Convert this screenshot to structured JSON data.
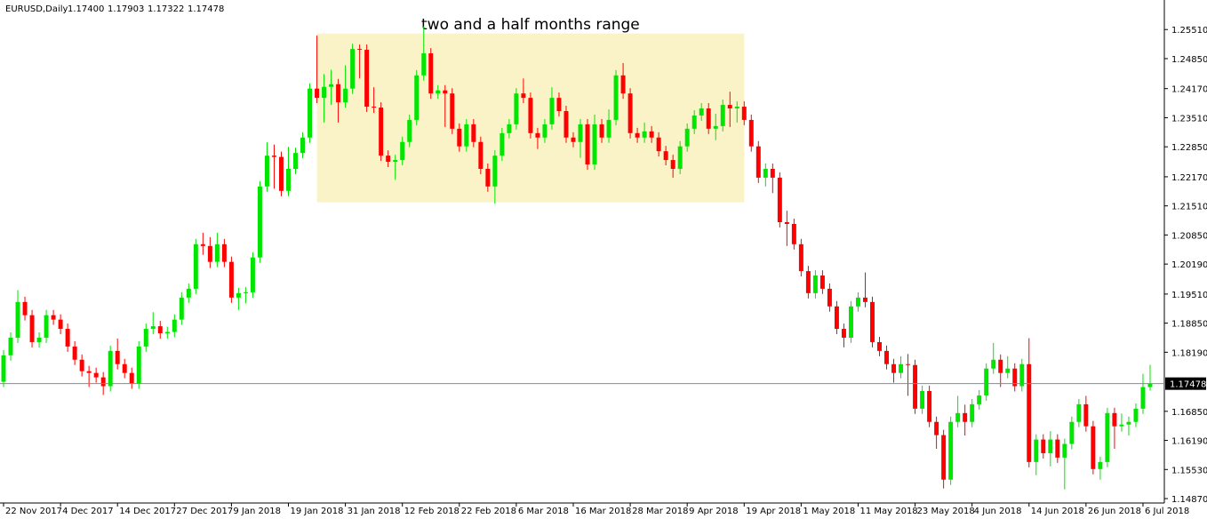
{
  "chart_data": {
    "type": "candlestick",
    "symbol": "EURUSD,Daily",
    "ohlc_labels": [
      "1.17400",
      "1.17903",
      "1.17322",
      "1.17478"
    ],
    "annotation": {
      "label": "two and a half months range",
      "x": [
        44,
        104
      ],
      "y": [
        1.2159,
        1.2542
      ],
      "color": "#fbf3c8"
    },
    "up_color": "#00e600",
    "down_color": "#ff0000",
    "last_price": {
      "value": 1.17478,
      "label": "1.17478"
    },
    "ylim": [
      1.1477,
      1.2618
    ],
    "xlim": [
      -0.5,
      163
    ],
    "yticks": [
      {
        "value": 1.2551,
        "label": "1.25510"
      },
      {
        "value": 1.2485,
        "label": "1.24850"
      },
      {
        "value": 1.2417,
        "label": "1.24170"
      },
      {
        "value": 1.2351,
        "label": "1.23510"
      },
      {
        "value": 1.2285,
        "label": "1.22850"
      },
      {
        "value": 1.2217,
        "label": "1.22170"
      },
      {
        "value": 1.2151,
        "label": "1.21510"
      },
      {
        "value": 1.2085,
        "label": "1.20850"
      },
      {
        "value": 1.2019,
        "label": "1.20190"
      },
      {
        "value": 1.1951,
        "label": "1.19510"
      },
      {
        "value": 1.1885,
        "label": "1.18850"
      },
      {
        "value": 1.1819,
        "label": "1.18190"
      },
      {
        "value": 1.1685,
        "label": "1.16850"
      },
      {
        "value": 1.1619,
        "label": "1.16190"
      },
      {
        "value": 1.1553,
        "label": "1.15530"
      },
      {
        "value": 1.1487,
        "label": "1.14870"
      }
    ],
    "xticks": [
      {
        "value": 0,
        "label": "22 Nov 2017"
      },
      {
        "value": 8,
        "label": "4 Dec 2017"
      },
      {
        "value": 16,
        "label": "14 Dec 2017"
      },
      {
        "value": 24,
        "label": "27 Dec 2017"
      },
      {
        "value": 32,
        "label": "9 Jan 2018"
      },
      {
        "value": 40,
        "label": "19 Jan 2018"
      },
      {
        "value": 48,
        "label": "31 Jan 2018"
      },
      {
        "value": 56,
        "label": "12 Feb 2018"
      },
      {
        "value": 64,
        "label": "22 Feb 2018"
      },
      {
        "value": 72,
        "label": "6 Mar 2018"
      },
      {
        "value": 80,
        "label": "16 Mar 2018"
      },
      {
        "value": 88,
        "label": "28 Mar 2018"
      },
      {
        "value": 96,
        "label": "9 Apr 2018"
      },
      {
        "value": 104,
        "label": "19 Apr 2018"
      },
      {
        "value": 112,
        "label": "1 May 2018"
      },
      {
        "value": 120,
        "label": "11 May 2018"
      },
      {
        "value": 128,
        "label": "23 May 2018"
      },
      {
        "value": 136,
        "label": "4 Jun 2018"
      },
      {
        "value": 144,
        "label": "14 Jun 2018"
      },
      {
        "value": 152,
        "label": "26 Jun 2018"
      },
      {
        "value": 160,
        "label": "6 Jul 2018"
      }
    ],
    "open": [
      1.1752,
      1.1812,
      1.1852,
      1.1933,
      1.1903,
      1.1842,
      1.1852,
      1.1903,
      1.1893,
      1.1872,
      1.1832,
      1.1802,
      1.1776,
      1.1772,
      1.1762,
      1.1742,
      1.1822,
      1.1792,
      1.1772,
      1.1748,
      1.1832,
      1.1872,
      1.1878,
      1.1862,
      1.1865,
      1.1893,
      1.1943,
      1.1963,
      1.2064,
      1.206,
      1.2024,
      1.2064,
      1.2024,
      1.1943,
      1.1953,
      1.1955,
      1.2034,
      1.2195,
      1.2265,
      1.2262,
      1.2185,
      1.2235,
      1.2271,
      1.2306,
      1.2417,
      1.2396,
      1.2421,
      1.2427,
      1.2386,
      1.2417,
      1.2507,
      1.2505,
      1.2376,
      1.2374,
      1.2265,
      1.2251,
      1.2255,
      1.2296,
      1.2346,
      1.2447,
      1.2497,
      1.2406,
      1.2413,
      1.2406,
      1.2326,
      1.2286,
      1.2336,
      1.2296,
      1.2235,
      1.2195,
      1.2265,
      1.2316,
      1.2336,
      1.2406,
      1.2396,
      1.2316,
      1.2306,
      1.2336,
      1.2396,
      1.2366,
      1.2306,
      1.2296,
      1.2336,
      1.2245,
      1.2336,
      1.2306,
      1.2346,
      1.2447,
      1.2406,
      1.2316,
      1.2306,
      1.232,
      1.2306,
      1.2275,
      1.2255,
      1.2235,
      1.2286,
      1.2326,
      1.2356,
      1.2372,
      1.2326,
      1.2332,
      1.238,
      1.2372,
      1.2376,
      1.2346,
      1.2286,
      1.2215,
      1.2235,
      1.2215,
      1.2114,
      1.211,
      1.2064,
      1.2003,
      1.1953,
      1.1993,
      1.1963,
      1.1923,
      1.1872,
      1.1852,
      1.1923,
      1.1943,
      1.1933,
      1.1842,
      1.1822,
      1.1792,
      1.1772,
      1.1792,
      1.179,
      1.1691,
      1.1731,
      1.1661,
      1.1631,
      1.153,
      1.1661,
      1.1681,
      1.1661,
      1.1701,
      1.1721,
      1.1782,
      1.1802,
      1.1772,
      1.1782,
      1.1742,
      1.1792,
      1.157,
      1.1621,
      1.159,
      1.1621,
      1.158,
      1.1611,
      1.1661,
      1.1701,
      1.1651,
      1.1554,
      1.157,
      1.1681,
      1.1651,
      1.1655,
      1.1661,
      1.1691,
      1.174
    ],
    "high": [
      1.1824,
      1.1864,
      1.196,
      1.1945,
      1.1915,
      1.1864,
      1.1915,
      1.1915,
      1.1905,
      1.1884,
      1.1844,
      1.1814,
      1.1788,
      1.1784,
      1.1774,
      1.1834,
      1.185,
      1.1804,
      1.1784,
      1.1844,
      1.1884,
      1.191,
      1.189,
      1.1877,
      1.1905,
      1.1955,
      1.1975,
      1.2076,
      1.209,
      1.208,
      1.209,
      1.2076,
      1.2036,
      1.1965,
      1.1967,
      1.2046,
      1.2207,
      1.2295,
      1.229,
      1.2274,
      1.2285,
      1.2283,
      1.2318,
      1.2429,
      1.2537,
      1.245,
      1.246,
      1.2439,
      1.247,
      1.2519,
      1.2517,
      1.2517,
      1.242,
      1.2386,
      1.2277,
      1.2267,
      1.2308,
      1.2358,
      1.2459,
      1.2558,
      1.2509,
      1.2425,
      1.2425,
      1.2418,
      1.2338,
      1.2348,
      1.2348,
      1.2308,
      1.2247,
      1.2277,
      1.2328,
      1.2348,
      1.2418,
      1.244,
      1.2408,
      1.2328,
      1.2348,
      1.242,
      1.2408,
      1.2378,
      1.2318,
      1.2348,
      1.2348,
      1.2358,
      1.2348,
      1.237,
      1.2459,
      1.2475,
      1.2418,
      1.2328,
      1.234,
      1.2332,
      1.2318,
      1.2287,
      1.2267,
      1.2298,
      1.2338,
      1.2368,
      1.2384,
      1.2384,
      1.236,
      1.2392,
      1.241,
      1.2388,
      1.2388,
      1.2358,
      1.2298,
      1.2247,
      1.2247,
      1.2227,
      1.214,
      1.2122,
      1.2076,
      1.2015,
      1.2005,
      1.2005,
      1.1975,
      1.1935,
      1.1884,
      1.1935,
      1.1955,
      1.2,
      1.1945,
      1.1854,
      1.1834,
      1.1804,
      1.181,
      1.1815,
      1.1802,
      1.1743,
      1.1743,
      1.1673,
      1.1643,
      1.1673,
      1.172,
      1.17,
      1.1713,
      1.1733,
      1.1794,
      1.184,
      1.1814,
      1.181,
      1.1794,
      1.1804,
      1.1851,
      1.1633,
      1.1633,
      1.164,
      1.1633,
      1.1623,
      1.1673,
      1.1713,
      1.172,
      1.1663,
      1.1582,
      1.1693,
      1.1693,
      1.168,
      1.1673,
      1.1703,
      1.177,
      1.17903
    ],
    "low": [
      1.174,
      1.18,
      1.184,
      1.1891,
      1.183,
      1.183,
      1.184,
      1.1881,
      1.186,
      1.182,
      1.179,
      1.1764,
      1.174,
      1.175,
      1.1722,
      1.173,
      1.178,
      1.176,
      1.1736,
      1.1736,
      1.182,
      1.186,
      1.185,
      1.185,
      1.1853,
      1.1881,
      1.1931,
      1.1951,
      1.204,
      1.201,
      1.2012,
      1.2012,
      1.1931,
      1.1915,
      1.193,
      1.1943,
      1.2022,
      1.2183,
      1.219,
      1.2173,
      1.2173,
      1.2223,
      1.2259,
      1.2294,
      1.2384,
      1.234,
      1.238,
      1.234,
      1.2374,
      1.2405,
      1.244,
      1.2364,
      1.2362,
      1.2253,
      1.2239,
      1.221,
      1.2243,
      1.2284,
      1.2334,
      1.2435,
      1.2394,
      1.2394,
      1.233,
      1.2314,
      1.2274,
      1.2274,
      1.2284,
      1.2223,
      1.2183,
      1.2156,
      1.2253,
      1.2304,
      1.2324,
      1.2384,
      1.2304,
      1.228,
      1.2294,
      1.2324,
      1.2354,
      1.2294,
      1.2284,
      1.226,
      1.2233,
      1.2233,
      1.2294,
      1.2294,
      1.2334,
      1.2394,
      1.2304,
      1.2294,
      1.2294,
      1.2294,
      1.2263,
      1.2243,
      1.2215,
      1.2223,
      1.2274,
      1.2314,
      1.2344,
      1.2314,
      1.23,
      1.232,
      1.233,
      1.234,
      1.2334,
      1.2274,
      1.2203,
      1.2195,
      1.218,
      1.2102,
      1.206,
      1.2052,
      1.1991,
      1.1941,
      1.1941,
      1.1951,
      1.1911,
      1.186,
      1.183,
      1.184,
      1.1911,
      1.1921,
      1.183,
      1.181,
      1.178,
      1.175,
      1.176,
      1.172,
      1.1679,
      1.1679,
      1.1649,
      1.16,
      1.151,
      1.1518,
      1.1649,
      1.163,
      1.1649,
      1.1689,
      1.1709,
      1.177,
      1.174,
      1.176,
      1.173,
      1.173,
      1.1558,
      1.154,
      1.1578,
      1.156,
      1.1568,
      1.1508,
      1.1599,
      1.1649,
      1.1639,
      1.1542,
      1.153,
      1.1558,
      1.16,
      1.1639,
      1.163,
      1.1649,
      1.1679,
      1.17322
    ],
    "close": [
      1.1812,
      1.1852,
      1.1933,
      1.1903,
      1.1842,
      1.1852,
      1.1903,
      1.1893,
      1.1872,
      1.1832,
      1.1802,
      1.1776,
      1.1772,
      1.1762,
      1.1742,
      1.1822,
      1.1792,
      1.1772,
      1.1748,
      1.1832,
      1.1872,
      1.1878,
      1.1862,
      1.1865,
      1.1893,
      1.1943,
      1.1963,
      1.2064,
      1.206,
      1.2024,
      1.2064,
      1.2024,
      1.1943,
      1.1953,
      1.1955,
      1.2034,
      1.2195,
      1.2265,
      1.2262,
      1.2185,
      1.2235,
      1.2271,
      1.2306,
      1.2417,
      1.2396,
      1.2421,
      1.2427,
      1.2386,
      1.2417,
      1.2507,
      1.2505,
      1.2376,
      1.2374,
      1.2265,
      1.2251,
      1.2255,
      1.2296,
      1.2346,
      1.2447,
      1.2497,
      1.2406,
      1.2413,
      1.2406,
      1.2326,
      1.2286,
      1.2336,
      1.2296,
      1.2235,
      1.2195,
      1.2265,
      1.2316,
      1.2336,
      1.2406,
      1.2396,
      1.2316,
      1.2306,
      1.2336,
      1.2396,
      1.2366,
      1.2306,
      1.2296,
      1.2336,
      1.2245,
      1.2336,
      1.2306,
      1.2346,
      1.2447,
      1.2406,
      1.2316,
      1.2306,
      1.232,
      1.2306,
      1.2275,
      1.2255,
      1.2235,
      1.2286,
      1.2326,
      1.2356,
      1.2372,
      1.2326,
      1.2332,
      1.238,
      1.2372,
      1.2376,
      1.2346,
      1.2286,
      1.2215,
      1.2235,
      1.2215,
      1.2114,
      1.211,
      1.2064,
      1.2003,
      1.1953,
      1.1993,
      1.1963,
      1.1923,
      1.1872,
      1.1852,
      1.1923,
      1.1943,
      1.1933,
      1.1842,
      1.1822,
      1.1792,
      1.1772,
      1.1792,
      1.179,
      1.1691,
      1.1731,
      1.1661,
      1.1631,
      1.153,
      1.1661,
      1.1681,
      1.1661,
      1.1701,
      1.1721,
      1.1782,
      1.1802,
      1.1772,
      1.1782,
      1.1742,
      1.1792,
      1.157,
      1.1621,
      1.159,
      1.1621,
      1.158,
      1.1611,
      1.1661,
      1.1701,
      1.1651,
      1.1554,
      1.157,
      1.1681,
      1.1651,
      1.1655,
      1.1661,
      1.1691,
      1.174,
      1.17478
    ]
  }
}
